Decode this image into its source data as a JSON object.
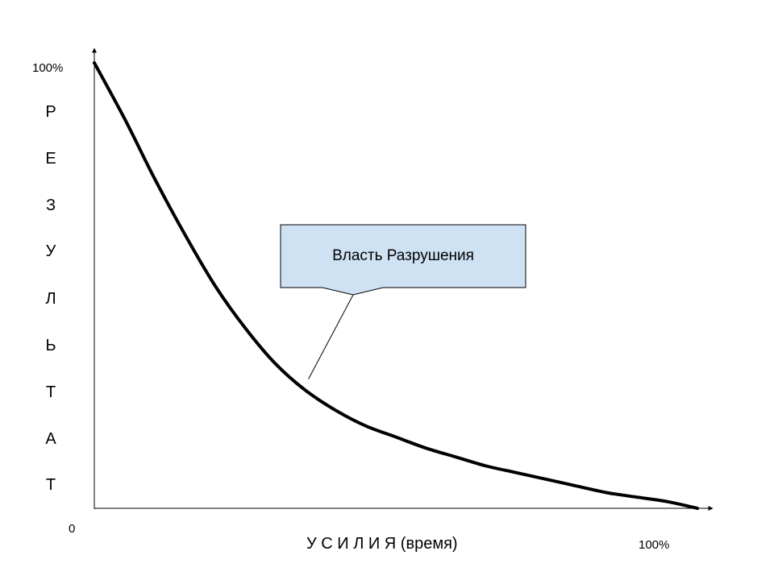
{
  "chart_data": {
    "type": "line",
    "title": "",
    "xlabel": "У С И Л И Я (время)",
    "ylabel_letters": [
      "Р",
      "Е",
      "З",
      "У",
      "Л",
      "Ь",
      "Т",
      "А",
      "Т"
    ],
    "x_tick_labels": {
      "origin": "0",
      "max": "100%"
    },
    "y_tick_labels": {
      "max": "100%"
    },
    "xlim": [
      0,
      100
    ],
    "ylim": [
      0,
      100
    ],
    "grid": false,
    "series": [
      {
        "x": [
          0,
          5,
          10,
          15,
          20,
          25,
          30,
          35,
          40,
          45,
          50,
          55,
          60,
          65,
          70,
          75,
          80,
          85,
          90,
          95,
          100
        ],
        "y": [
          100,
          87.5,
          74,
          61.5,
          50,
          40.5,
          32.5,
          26.5,
          22,
          18.5,
          16,
          13.5,
          11.5,
          9.5,
          8,
          6.5,
          5,
          3.5,
          2.5,
          1.5,
          0
        ]
      }
    ],
    "annotation": {
      "text": "Власть Разрушения",
      "point_x": 35.5,
      "point_y": 29
    },
    "line_color": "#000000",
    "callout_fill": "#cfe2f3"
  }
}
